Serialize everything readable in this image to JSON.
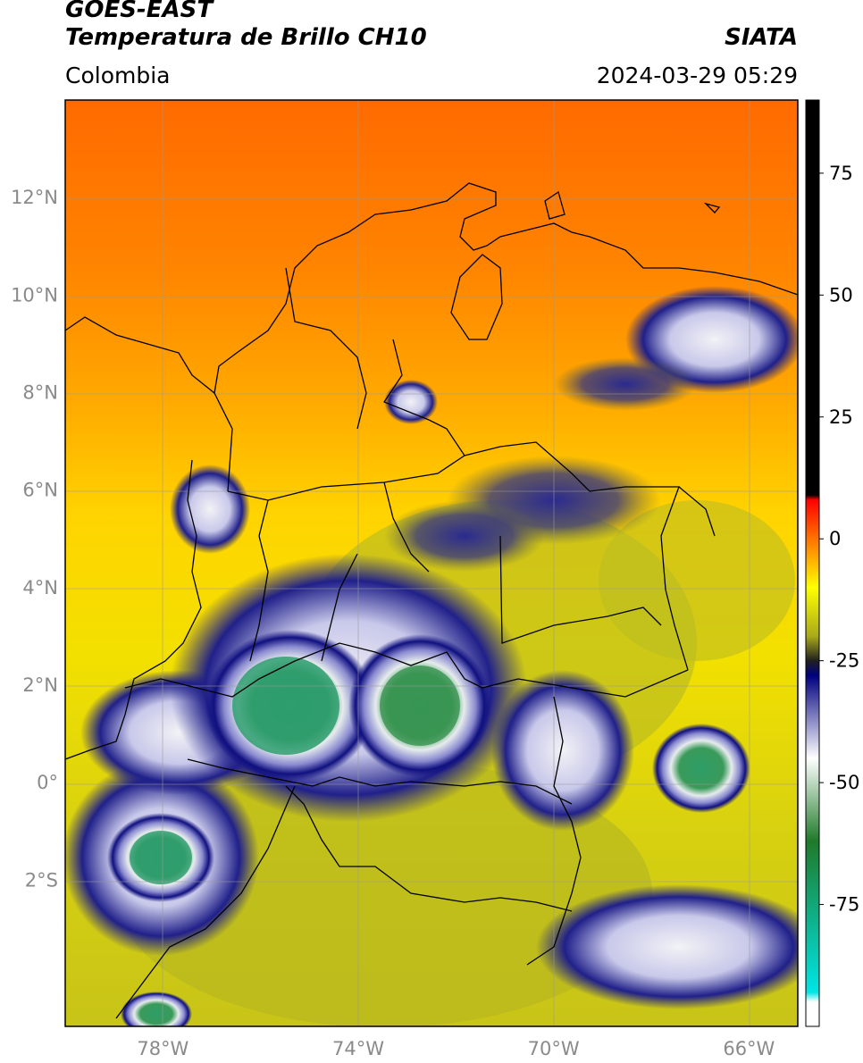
{
  "header": {
    "satellite": "GOES-EAST",
    "product": "Temperatura de Brillo CH10",
    "organization": "SIATA",
    "region": "Colombia",
    "timestamp": "2024-03-29 05:29"
  },
  "map": {
    "lon_range": [
      -80,
      -65
    ],
    "lat_range": [
      -5,
      14
    ],
    "lon_ticks": [
      {
        "value": -78,
        "label": "78°W"
      },
      {
        "value": -74,
        "label": "74°W"
      },
      {
        "value": -70,
        "label": "70°W"
      },
      {
        "value": -66,
        "label": "66°W"
      }
    ],
    "lat_ticks": [
      {
        "value": 12,
        "label": "12°N"
      },
      {
        "value": 10,
        "label": "10°N"
      },
      {
        "value": 8,
        "label": "8°N"
      },
      {
        "value": 6,
        "label": "6°N"
      },
      {
        "value": 4,
        "label": "4°N"
      },
      {
        "value": 2,
        "label": "2°N"
      },
      {
        "value": 0,
        "label": "0°"
      },
      {
        "value": -2,
        "label": "2°S"
      }
    ],
    "gridlines": true
  },
  "colorbar": {
    "range": [
      -100,
      90
    ],
    "ticks": [
      {
        "value": 75,
        "label": "75"
      },
      {
        "value": 50,
        "label": "50"
      },
      {
        "value": 25,
        "label": "25"
      },
      {
        "value": 0,
        "label": "0"
      },
      {
        "value": -25,
        "label": "-25"
      },
      {
        "value": -50,
        "label": "-50"
      },
      {
        "value": -75,
        "label": "-75"
      }
    ],
    "stops": [
      {
        "value": 90,
        "color": "#000000"
      },
      {
        "value": 9,
        "color": "#000000"
      },
      {
        "value": 8,
        "color": "#ff0000"
      },
      {
        "value": 0,
        "color": "#ff7300"
      },
      {
        "value": -10,
        "color": "#ffff00"
      },
      {
        "value": -20,
        "color": "#a9a91a"
      },
      {
        "value": -25,
        "color": "#202020"
      },
      {
        "value": -28,
        "color": "#00007f"
      },
      {
        "value": -45,
        "color": "#ffffff"
      },
      {
        "value": -62,
        "color": "#1f7a2a"
      },
      {
        "value": -93,
        "color": "#00e5e5"
      },
      {
        "value": -95,
        "color": "#ffffff"
      },
      {
        "value": -100,
        "color": "#ffffff"
      }
    ]
  },
  "field_colors": {
    "warm_sea": "#ff6a00",
    "orange": "#ff8c00",
    "yellow": "#ffd000",
    "olive": "#c0c020",
    "deep_convection": "#101080",
    "white_cloud": "#e8e8f0",
    "cold_top_green": "#2e9a60",
    "coastline": "#000000"
  }
}
